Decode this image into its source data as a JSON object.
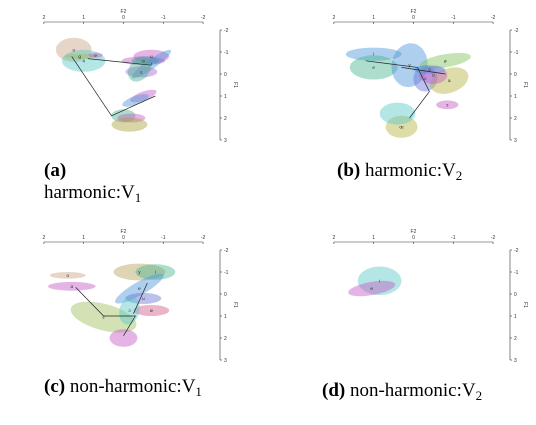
{
  "panels": [
    {
      "id": "a",
      "axis": {
        "top_title": "F2",
        "right_title": "F1",
        "x_ticks": [
          "2",
          "1",
          "0",
          "-1",
          "-2"
        ],
        "y_ticks": [
          "-2",
          "-1",
          "0",
          "1",
          "2",
          "3"
        ]
      },
      "caption": {
        "label": "(a)",
        "text": "harmonic:V",
        "sub": "1"
      },
      "ellipses": [
        {
          "cx": 1.25,
          "cy": -1.1,
          "rx": 0.45,
          "ry": 0.55,
          "color": "#c9a483"
        },
        {
          "cx": 1.0,
          "cy": -0.6,
          "rx": 0.55,
          "ry": 0.5,
          "color": "#5cc7c7"
        },
        {
          "cx": 1.1,
          "cy": -0.8,
          "rx": 0.4,
          "ry": 0.12,
          "color": "#9bbf5a"
        },
        {
          "cx": 0.7,
          "cy": -0.85,
          "rx": 0.18,
          "ry": 0.12,
          "color": "#c45ac4"
        },
        {
          "cx": -0.5,
          "cy": -0.6,
          "rx": 0.55,
          "ry": 0.2,
          "color": "#c45ac4"
        },
        {
          "cx": -0.7,
          "cy": -0.8,
          "rx": 0.45,
          "ry": 0.3,
          "color": "#c45ac4"
        },
        {
          "cx": -0.7,
          "cy": -0.45,
          "rx": 0.6,
          "ry": 0.22,
          "color": "#4c97d9",
          "rot": -35
        },
        {
          "cx": -0.45,
          "cy": -0.1,
          "rx": 0.4,
          "ry": 0.25,
          "color": "#a26ad6"
        },
        {
          "cx": -0.55,
          "cy": -0.6,
          "rx": 0.35,
          "ry": 0.2,
          "color": "#3c9aa8"
        },
        {
          "cx": -0.4,
          "cy": -0.2,
          "rx": 0.25,
          "ry": 0.6,
          "color": "#4ab38f",
          "rot": 40
        },
        {
          "cx": -0.5,
          "cy": 1.0,
          "rx": 0.35,
          "ry": 0.2,
          "color": "#c45ac4",
          "rot": -20
        },
        {
          "cx": -0.3,
          "cy": 1.2,
          "rx": 0.35,
          "ry": 0.2,
          "color": "#4c97d9",
          "rot": -20
        },
        {
          "cx": 0.0,
          "cy": 1.9,
          "rx": 0.3,
          "ry": 0.3,
          "color": "#4ab38f"
        },
        {
          "cx": -0.2,
          "cy": 2.0,
          "rx": 0.35,
          "ry": 0.2,
          "color": "#c45ac4"
        },
        {
          "cx": -0.15,
          "cy": 2.3,
          "rx": 0.45,
          "ry": 0.32,
          "color": "#a8a13a"
        }
      ],
      "lines": [
        [
          [
            1.3,
            -0.8
          ],
          [
            0.3,
            1.9
          ],
          [
            -0.8,
            1.0
          ]
        ],
        [
          [
            0.9,
            -0.7
          ],
          [
            -0.7,
            -0.4
          ]
        ]
      ],
      "labels": [
        "o",
        "4",
        "g",
        "e",
        "ɑ",
        "u",
        "i",
        "ɛ"
      ]
    },
    {
      "id": "b",
      "axis": {
        "top_title": "F2",
        "right_title": "F1",
        "x_ticks": [
          "2",
          "1",
          "0",
          "-1",
          "-2"
        ],
        "y_ticks": [
          "-2",
          "-1",
          "0",
          "1",
          "2",
          "3"
        ]
      },
      "caption": {
        "label": "(b)",
        "text": "harmonic:V",
        "sub": "2"
      },
      "ellipses": [
        {
          "cx": 1.0,
          "cy": -0.9,
          "rx": 0.7,
          "ry": 0.3,
          "color": "#4c97d9"
        },
        {
          "cx": 1.0,
          "cy": -0.3,
          "rx": 0.6,
          "ry": 0.55,
          "color": "#4ab38f"
        },
        {
          "cx": 0.1,
          "cy": -0.4,
          "rx": 0.45,
          "ry": 1.0,
          "color": "#4c97d9",
          "rot": 10
        },
        {
          "cx": -0.3,
          "cy": 0.2,
          "rx": 0.3,
          "ry": 0.6,
          "color": "#6a73d6",
          "rot": 15
        },
        {
          "cx": -0.8,
          "cy": -0.6,
          "rx": 0.65,
          "ry": 0.3,
          "color": "#7ec15a",
          "rot": -10
        },
        {
          "cx": -0.9,
          "cy": 0.3,
          "rx": 0.5,
          "ry": 0.55,
          "color": "#b6b342",
          "rot": -20
        },
        {
          "cx": -0.5,
          "cy": 0.05,
          "rx": 0.35,
          "ry": 0.4,
          "color": "#c45ac4"
        },
        {
          "cx": -0.4,
          "cy": -0.2,
          "rx": 0.4,
          "ry": 0.2,
          "color": "#4c97d9"
        },
        {
          "cx": -0.85,
          "cy": 1.4,
          "rx": 0.28,
          "ry": 0.2,
          "color": "#c45ac4"
        },
        {
          "cx": 0.3,
          "cy": 2.4,
          "rx": 0.4,
          "ry": 0.5,
          "color": "#b6b342"
        },
        {
          "cx": 0.4,
          "cy": 1.8,
          "rx": 0.45,
          "ry": 0.5,
          "color": "#5cc7c7"
        }
      ],
      "lines": [
        [
          [
            1.2,
            -0.6
          ],
          [
            -0.1,
            -0.3
          ],
          [
            -0.4,
            0.8
          ],
          [
            0.1,
            2.0
          ]
        ],
        [
          [
            0.3,
            -0.3
          ],
          [
            -0.8,
            0.0
          ]
        ]
      ],
      "labels": [
        "i",
        "e",
        "y",
        "ɛ",
        "ø",
        "a",
        "u",
        "o",
        "ɔ",
        "œ"
      ]
    },
    {
      "id": "c",
      "axis": {
        "top_title": "F2",
        "right_title": "F1",
        "x_ticks": [
          "2",
          "1",
          "0",
          "-1",
          "-2"
        ],
        "y_ticks": [
          "-2",
          "-1",
          "0",
          "1",
          "2",
          "3"
        ]
      },
      "caption": {
        "label": "(c)",
        "text": "non-harmonic:V",
        "sub": "1"
      },
      "ellipses": [
        {
          "cx": 1.4,
          "cy": -0.85,
          "rx": 0.45,
          "ry": 0.15,
          "color": "#c9a483"
        },
        {
          "cx": 1.3,
          "cy": -0.35,
          "rx": 0.6,
          "ry": 0.2,
          "color": "#c45ac4"
        },
        {
          "cx": 0.5,
          "cy": 1.05,
          "rx": 0.85,
          "ry": 0.6,
          "color": "#9bbf5a",
          "rot": 15
        },
        {
          "cx": -0.4,
          "cy": -1.0,
          "rx": 0.65,
          "ry": 0.38,
          "color": "#b6a25a"
        },
        {
          "cx": -0.8,
          "cy": -1.0,
          "rx": 0.5,
          "ry": 0.35,
          "color": "#4ab38f"
        },
        {
          "cx": -0.4,
          "cy": -0.25,
          "rx": 0.7,
          "ry": 0.3,
          "color": "#4c97d9",
          "rot": -30
        },
        {
          "cx": -0.5,
          "cy": 0.2,
          "rx": 0.45,
          "ry": 0.25,
          "color": "#6a73d6"
        },
        {
          "cx": -0.7,
          "cy": 0.75,
          "rx": 0.45,
          "ry": 0.25,
          "color": "#d05a8a"
        },
        {
          "cx": -0.15,
          "cy": 0.75,
          "rx": 0.25,
          "ry": 0.65,
          "color": "#5cc7c7",
          "rot": 15
        },
        {
          "cx": 0.0,
          "cy": 2.0,
          "rx": 0.35,
          "ry": 0.4,
          "color": "#c45ac4"
        }
      ],
      "lines": [
        [
          [
            1.2,
            -0.3
          ],
          [
            0.5,
            1.0
          ],
          [
            -0.3,
            1.0
          ],
          [
            0.0,
            1.9
          ]
        ],
        [
          [
            -0.25,
            0.9
          ],
          [
            -0.6,
            -0.5
          ]
        ]
      ],
      "labels": [
        "o",
        "ɑ",
        "ɛ",
        "y",
        "i",
        "e",
        "u",
        "ø",
        "ɔ"
      ]
    },
    {
      "id": "d",
      "axis": {
        "top_title": "F2",
        "right_title": "F1",
        "x_ticks": [
          "2",
          "1",
          "0",
          "-1",
          "-2"
        ],
        "y_ticks": [
          "-2",
          "-1",
          "0",
          "1",
          "2",
          "3"
        ]
      },
      "caption": {
        "label": "(d)",
        "text": "non-harmonic:V",
        "sub": "2"
      },
      "ellipses": [
        {
          "cx": 0.85,
          "cy": -0.6,
          "rx": 0.55,
          "ry": 0.65,
          "color": "#5cc7c7"
        },
        {
          "cx": 1.05,
          "cy": -0.25,
          "rx": 0.6,
          "ry": 0.3,
          "color": "#c45ac4",
          "rot": -10
        }
      ],
      "lines": [],
      "labels": [
        "i",
        "e"
      ]
    }
  ]
}
